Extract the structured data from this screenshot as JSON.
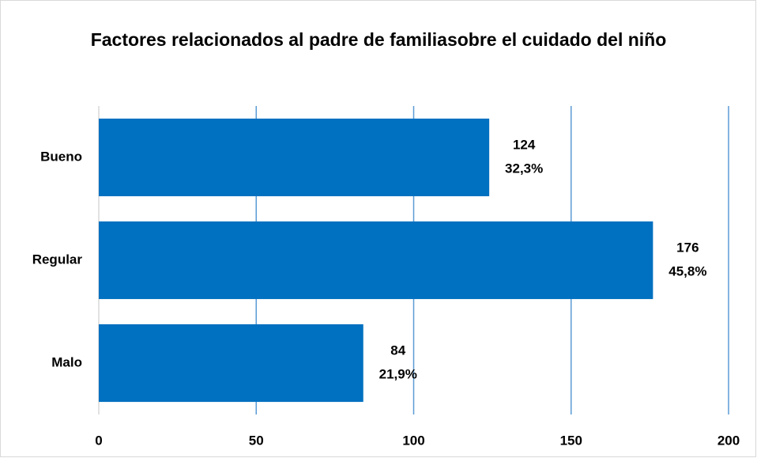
{
  "chart_data": {
    "type": "barh",
    "title": "Factores relacionados al padre de familiasobre el cuidado del niño",
    "categories": [
      "Bueno",
      "Regular",
      "Malo"
    ],
    "values": [
      124,
      176,
      84
    ],
    "percentages": [
      {
        "value": 32.3,
        "label": "32,3%"
      },
      {
        "value": 45.8,
        "label": "45,8%"
      },
      {
        "value": 21.9,
        "label": "21,9%"
      }
    ],
    "color": "#0070c0",
    "xlim": [
      0,
      200
    ],
    "xticks": [
      0,
      50,
      100,
      150,
      200
    ],
    "grid": true
  }
}
